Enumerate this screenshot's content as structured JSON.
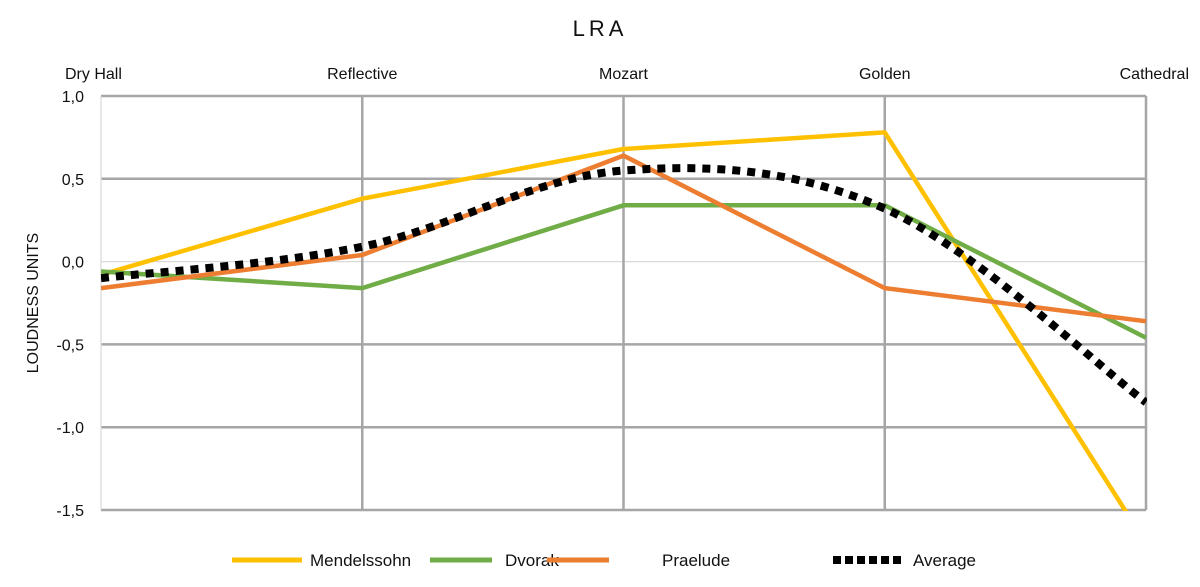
{
  "chart_data": {
    "type": "line",
    "title": "LRA",
    "xlabel": "",
    "ylabel": "LOUDNESS UNITS",
    "categories": [
      "Dry Hall",
      "Reflective",
      "Mozart",
      "Golden",
      "Cathedral"
    ],
    "ylim": [
      -1.5,
      1.0
    ],
    "yticks": [
      1.0,
      0.5,
      0.0,
      -0.5,
      -1.0,
      -1.5
    ],
    "ytick_labels": [
      "1,0",
      "0,5",
      "0,0",
      "-0,5",
      "-1,0",
      "-1,5"
    ],
    "grid": true,
    "category_axis_position": "top",
    "legend_position": "bottom",
    "series": [
      {
        "name": "Mendelssohn",
        "color": "#FFC000",
        "style": "solid",
        "values": [
          -0.08,
          0.38,
          0.68,
          0.78,
          -1.7
        ]
      },
      {
        "name": "Dvorak",
        "color": "#70AD47",
        "style": "solid",
        "values": [
          -0.06,
          -0.16,
          0.34,
          0.34,
          -0.46
        ]
      },
      {
        "name": "Praelude",
        "color": "#ED7D31",
        "style": "solid",
        "values": [
          -0.16,
          0.04,
          0.64,
          -0.16,
          -0.36
        ]
      },
      {
        "name": "Average",
        "color": "#000000",
        "style": "dotted",
        "smooth": true,
        "values": [
          -0.1,
          0.09,
          0.55,
          0.32,
          -0.85
        ]
      }
    ]
  }
}
